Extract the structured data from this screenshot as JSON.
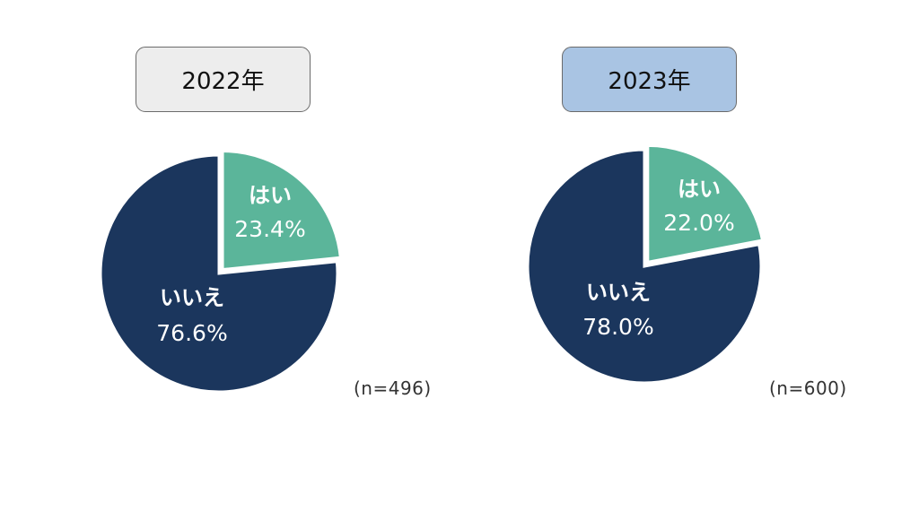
{
  "chart_data": [
    {
      "type": "pie",
      "title": "2022年",
      "sample_size": "(n=496)",
      "slices": [
        {
          "label": "はい",
          "value": 23.4,
          "value_label": "23.4%",
          "color": "#5bb59a"
        },
        {
          "label": "いいえ",
          "value": 76.6,
          "value_label": "76.6%",
          "color": "#1b365d"
        }
      ]
    },
    {
      "type": "pie",
      "title": "2023年",
      "sample_size": "(n=600)",
      "slices": [
        {
          "label": "はい",
          "value": 22.0,
          "value_label": "22.0%",
          "color": "#5bb59a"
        },
        {
          "label": "いいえ",
          "value": 78.0,
          "value_label": "78.0%",
          "color": "#1b365d"
        }
      ]
    }
  ]
}
